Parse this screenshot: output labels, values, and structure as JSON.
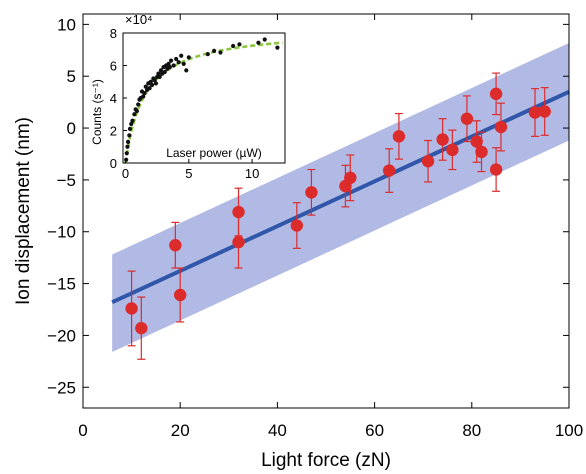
{
  "chart_data": [
    {
      "type": "scatter",
      "title": "",
      "xlabel": "Light force (zN)",
      "ylabel": "Ion displacement (nm)",
      "xlim": [
        0,
        100
      ],
      "ylim": [
        -27,
        11
      ],
      "xticks": [
        0,
        20,
        40,
        60,
        80,
        100
      ],
      "yticks": [
        -25,
        -20,
        -15,
        -10,
        -5,
        0,
        5,
        10
      ],
      "ytick_labels": [
        "−25",
        "−20",
        "−15",
        "−10",
        "−5",
        "0",
        "5",
        "10"
      ],
      "grid": false,
      "colors": {
        "points": "#dc2b2b",
        "errorbars": "#dc2b2b",
        "fit_line": "#2f56a8",
        "band": "#a3aee0"
      },
      "points": [
        {
          "x": 10,
          "y": -17.4,
          "err": 3.6
        },
        {
          "x": 12,
          "y": -19.3,
          "err": 3.0
        },
        {
          "x": 19,
          "y": -11.3,
          "err": 2.2
        },
        {
          "x": 20,
          "y": -16.1,
          "err": 2.6
        },
        {
          "x": 32,
          "y": -8.1,
          "err": 2.3
        },
        {
          "x": 32,
          "y": -11.0,
          "err": 2.5
        },
        {
          "x": 44,
          "y": -9.4,
          "err": 2.2
        },
        {
          "x": 47,
          "y": -6.2,
          "err": 2.2
        },
        {
          "x": 54,
          "y": -5.6,
          "err": 2.0
        },
        {
          "x": 55,
          "y": -4.8,
          "err": 2.2
        },
        {
          "x": 63,
          "y": -4.1,
          "err": 2.1
        },
        {
          "x": 65,
          "y": -0.8,
          "err": 2.2
        },
        {
          "x": 71,
          "y": -3.2,
          "err": 2.0
        },
        {
          "x": 74,
          "y": -1.1,
          "err": 2.0
        },
        {
          "x": 76,
          "y": -2.1,
          "err": 1.9
        },
        {
          "x": 79,
          "y": 0.9,
          "err": 2.2
        },
        {
          "x": 81,
          "y": -1.3,
          "err": 2.0
        },
        {
          "x": 82,
          "y": -2.3,
          "err": 1.9
        },
        {
          "x": 85,
          "y": -4.0,
          "err": 2.1
        },
        {
          "x": 85,
          "y": 3.3,
          "err": 2.0
        },
        {
          "x": 86,
          "y": 0.1,
          "err": 2.3
        },
        {
          "x": 93,
          "y": 1.5,
          "err": 2.3
        },
        {
          "x": 95,
          "y": 1.6,
          "err": 2.3
        }
      ],
      "fit_line": {
        "x": [
          6,
          100
        ],
        "y": [
          -16.8,
          3.5
        ]
      },
      "confidence_band": {
        "x": [
          6,
          100
        ],
        "upper": [
          -12.2,
          8.2
        ],
        "lower": [
          -21.6,
          -1.2
        ]
      }
    },
    {
      "type": "scatter",
      "title": "",
      "xlabel": "Laser power (µW)",
      "ylabel": "Counts (s⁻¹)",
      "xlim": [
        -0.2,
        12.6
      ],
      "ylim": [
        0,
        8
      ],
      "xticks": [
        0,
        5,
        10
      ],
      "yticks": [
        0,
        2,
        4,
        6,
        8
      ],
      "y_multiplier": "×10⁴",
      "colors": {
        "points": "#111111",
        "fit_curve": "#8cc63f"
      },
      "points": [
        {
          "x": 0.05,
          "y": 0.2
        },
        {
          "x": 0.1,
          "y": 0.6
        },
        {
          "x": 0.15,
          "y": 1.0
        },
        {
          "x": 0.2,
          "y": 1.3
        },
        {
          "x": 0.3,
          "y": 1.7
        },
        {
          "x": 0.35,
          "y": 2.1
        },
        {
          "x": 0.45,
          "y": 2.4
        },
        {
          "x": 0.55,
          "y": 2.6
        },
        {
          "x": 0.7,
          "y": 3.0
        },
        {
          "x": 0.8,
          "y": 3.3
        },
        {
          "x": 0.9,
          "y": 3.2
        },
        {
          "x": 1.0,
          "y": 3.6
        },
        {
          "x": 1.1,
          "y": 3.9
        },
        {
          "x": 1.2,
          "y": 4.0
        },
        {
          "x": 1.3,
          "y": 4.4
        },
        {
          "x": 1.4,
          "y": 4.1
        },
        {
          "x": 1.5,
          "y": 4.3
        },
        {
          "x": 1.6,
          "y": 4.7
        },
        {
          "x": 1.7,
          "y": 4.5
        },
        {
          "x": 1.8,
          "y": 4.9
        },
        {
          "x": 1.9,
          "y": 4.6
        },
        {
          "x": 2.0,
          "y": 5.0
        },
        {
          "x": 2.1,
          "y": 4.8
        },
        {
          "x": 2.2,
          "y": 5.2
        },
        {
          "x": 2.3,
          "y": 5.1
        },
        {
          "x": 2.4,
          "y": 4.9
        },
        {
          "x": 2.5,
          "y": 5.3
        },
        {
          "x": 2.6,
          "y": 5.5
        },
        {
          "x": 2.7,
          "y": 5.3
        },
        {
          "x": 2.8,
          "y": 5.7
        },
        {
          "x": 2.9,
          "y": 5.5
        },
        {
          "x": 3.0,
          "y": 5.9
        },
        {
          "x": 3.1,
          "y": 5.6
        },
        {
          "x": 3.2,
          "y": 6.0
        },
        {
          "x": 3.3,
          "y": 5.8
        },
        {
          "x": 3.4,
          "y": 6.1
        },
        {
          "x": 3.5,
          "y": 5.9
        },
        {
          "x": 3.6,
          "y": 6.3
        },
        {
          "x": 3.8,
          "y": 6.0
        },
        {
          "x": 4.0,
          "y": 6.4
        },
        {
          "x": 4.2,
          "y": 6.2
        },
        {
          "x": 4.4,
          "y": 6.6
        },
        {
          "x": 4.6,
          "y": 6.1
        },
        {
          "x": 4.8,
          "y": 5.7
        },
        {
          "x": 5.0,
          "y": 6.5
        },
        {
          "x": 6.5,
          "y": 6.7
        },
        {
          "x": 7.0,
          "y": 6.9
        },
        {
          "x": 7.5,
          "y": 6.8
        },
        {
          "x": 8.5,
          "y": 7.2
        },
        {
          "x": 9.0,
          "y": 7.3
        },
        {
          "x": 10.5,
          "y": 7.4
        },
        {
          "x": 11.0,
          "y": 7.6
        },
        {
          "x": 12.0,
          "y": 7.1
        }
      ],
      "fit_curve": {
        "form": "saturation",
        "a": 8.3,
        "k": 1.5
      }
    }
  ]
}
